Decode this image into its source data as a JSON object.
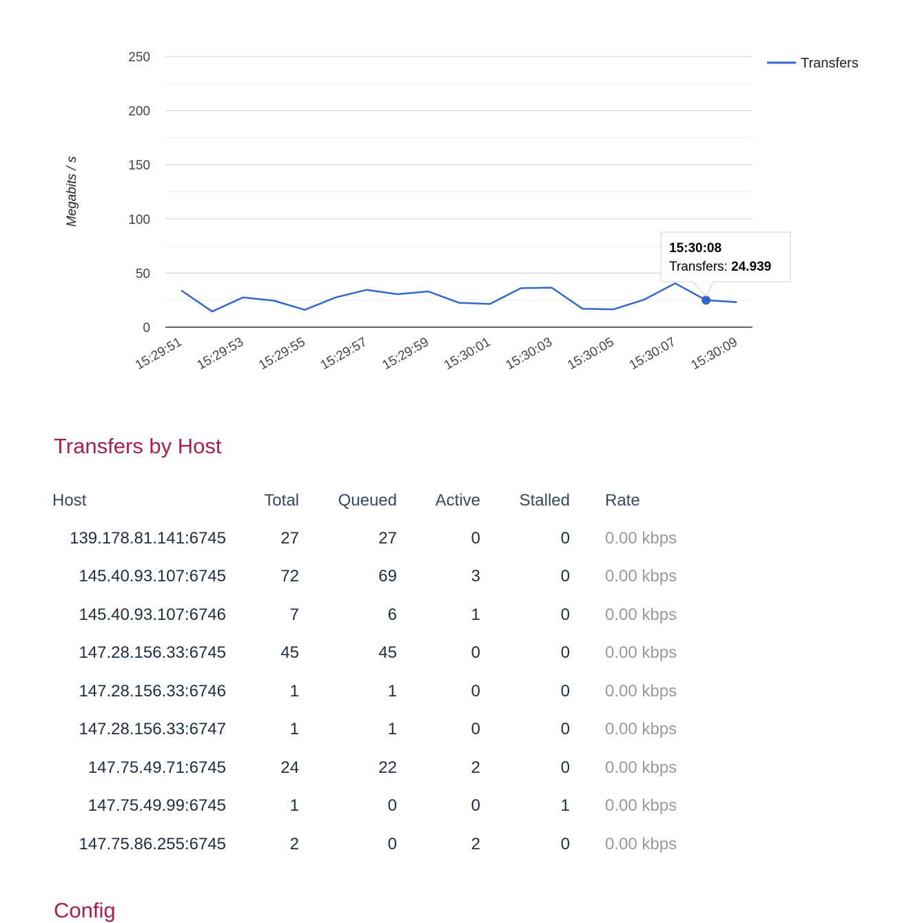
{
  "chart_data": {
    "type": "line",
    "title": "",
    "xlabel": "",
    "ylabel": "Megabits / s",
    "ylim": [
      0,
      250
    ],
    "yticks": [
      "0",
      "50",
      "100",
      "150",
      "200",
      "250"
    ],
    "x": [
      "15:29:51",
      "15:29:52",
      "15:29:53",
      "15:29:54",
      "15:29:55",
      "15:29:56",
      "15:29:57",
      "15:29:58",
      "15:29:59",
      "15:30:00",
      "15:30:01",
      "15:30:02",
      "15:30:03",
      "15:30:04",
      "15:30:05",
      "15:30:06",
      "15:30:07",
      "15:30:08",
      "15:30:09"
    ],
    "xticks": [
      "15:29:51",
      "15:29:53",
      "15:29:55",
      "15:29:57",
      "15:29:59",
      "15:30:01",
      "15:30:03",
      "15:30:05",
      "15:30:07",
      "15:30:09"
    ],
    "series": [
      {
        "name": "Transfers",
        "color": "#3366cc",
        "values": [
          34,
          14.5,
          27.5,
          24.5,
          16,
          27.5,
          34.5,
          30.5,
          33,
          22.5,
          21.5,
          36,
          36.5,
          17,
          16.5,
          25.5,
          40.5,
          24.939,
          23
        ]
      }
    ],
    "grid": true,
    "legend": "top-right",
    "tooltip": {
      "index": 17,
      "time": "15:30:08",
      "label": "Transfers: ",
      "value": "24.939"
    }
  },
  "hosts_section": {
    "title": "Transfers by Host",
    "columns": {
      "host": "Host",
      "total": "Total",
      "queued": "Queued",
      "active": "Active",
      "stalled": "Stalled",
      "rate": "Rate"
    },
    "rows": [
      {
        "host": "139.178.81.141:6745",
        "total": "27",
        "queued": "27",
        "active": "0",
        "stalled": "0",
        "rate": "0.00 kbps"
      },
      {
        "host": "145.40.93.107:6745",
        "total": "72",
        "queued": "69",
        "active": "3",
        "stalled": "0",
        "rate": "0.00 kbps"
      },
      {
        "host": "145.40.93.107:6746",
        "total": "7",
        "queued": "6",
        "active": "1",
        "stalled": "0",
        "rate": "0.00 kbps"
      },
      {
        "host": "147.28.156.33:6745",
        "total": "45",
        "queued": "45",
        "active": "0",
        "stalled": "0",
        "rate": "0.00 kbps"
      },
      {
        "host": "147.28.156.33:6746",
        "total": "1",
        "queued": "1",
        "active": "0",
        "stalled": "0",
        "rate": "0.00 kbps"
      },
      {
        "host": "147.28.156.33:6747",
        "total": "1",
        "queued": "1",
        "active": "0",
        "stalled": "0",
        "rate": "0.00 kbps"
      },
      {
        "host": "147.75.49.71:6745",
        "total": "24",
        "queued": "22",
        "active": "2",
        "stalled": "0",
        "rate": "0.00 kbps"
      },
      {
        "host": "147.75.49.99:6745",
        "total": "1",
        "queued": "0",
        "active": "0",
        "stalled": "1",
        "rate": "0.00 kbps"
      },
      {
        "host": "147.75.86.255:6745",
        "total": "2",
        "queued": "0",
        "active": "2",
        "stalled": "0",
        "rate": "0.00 kbps"
      }
    ]
  },
  "config_section": {
    "title": "Config"
  }
}
